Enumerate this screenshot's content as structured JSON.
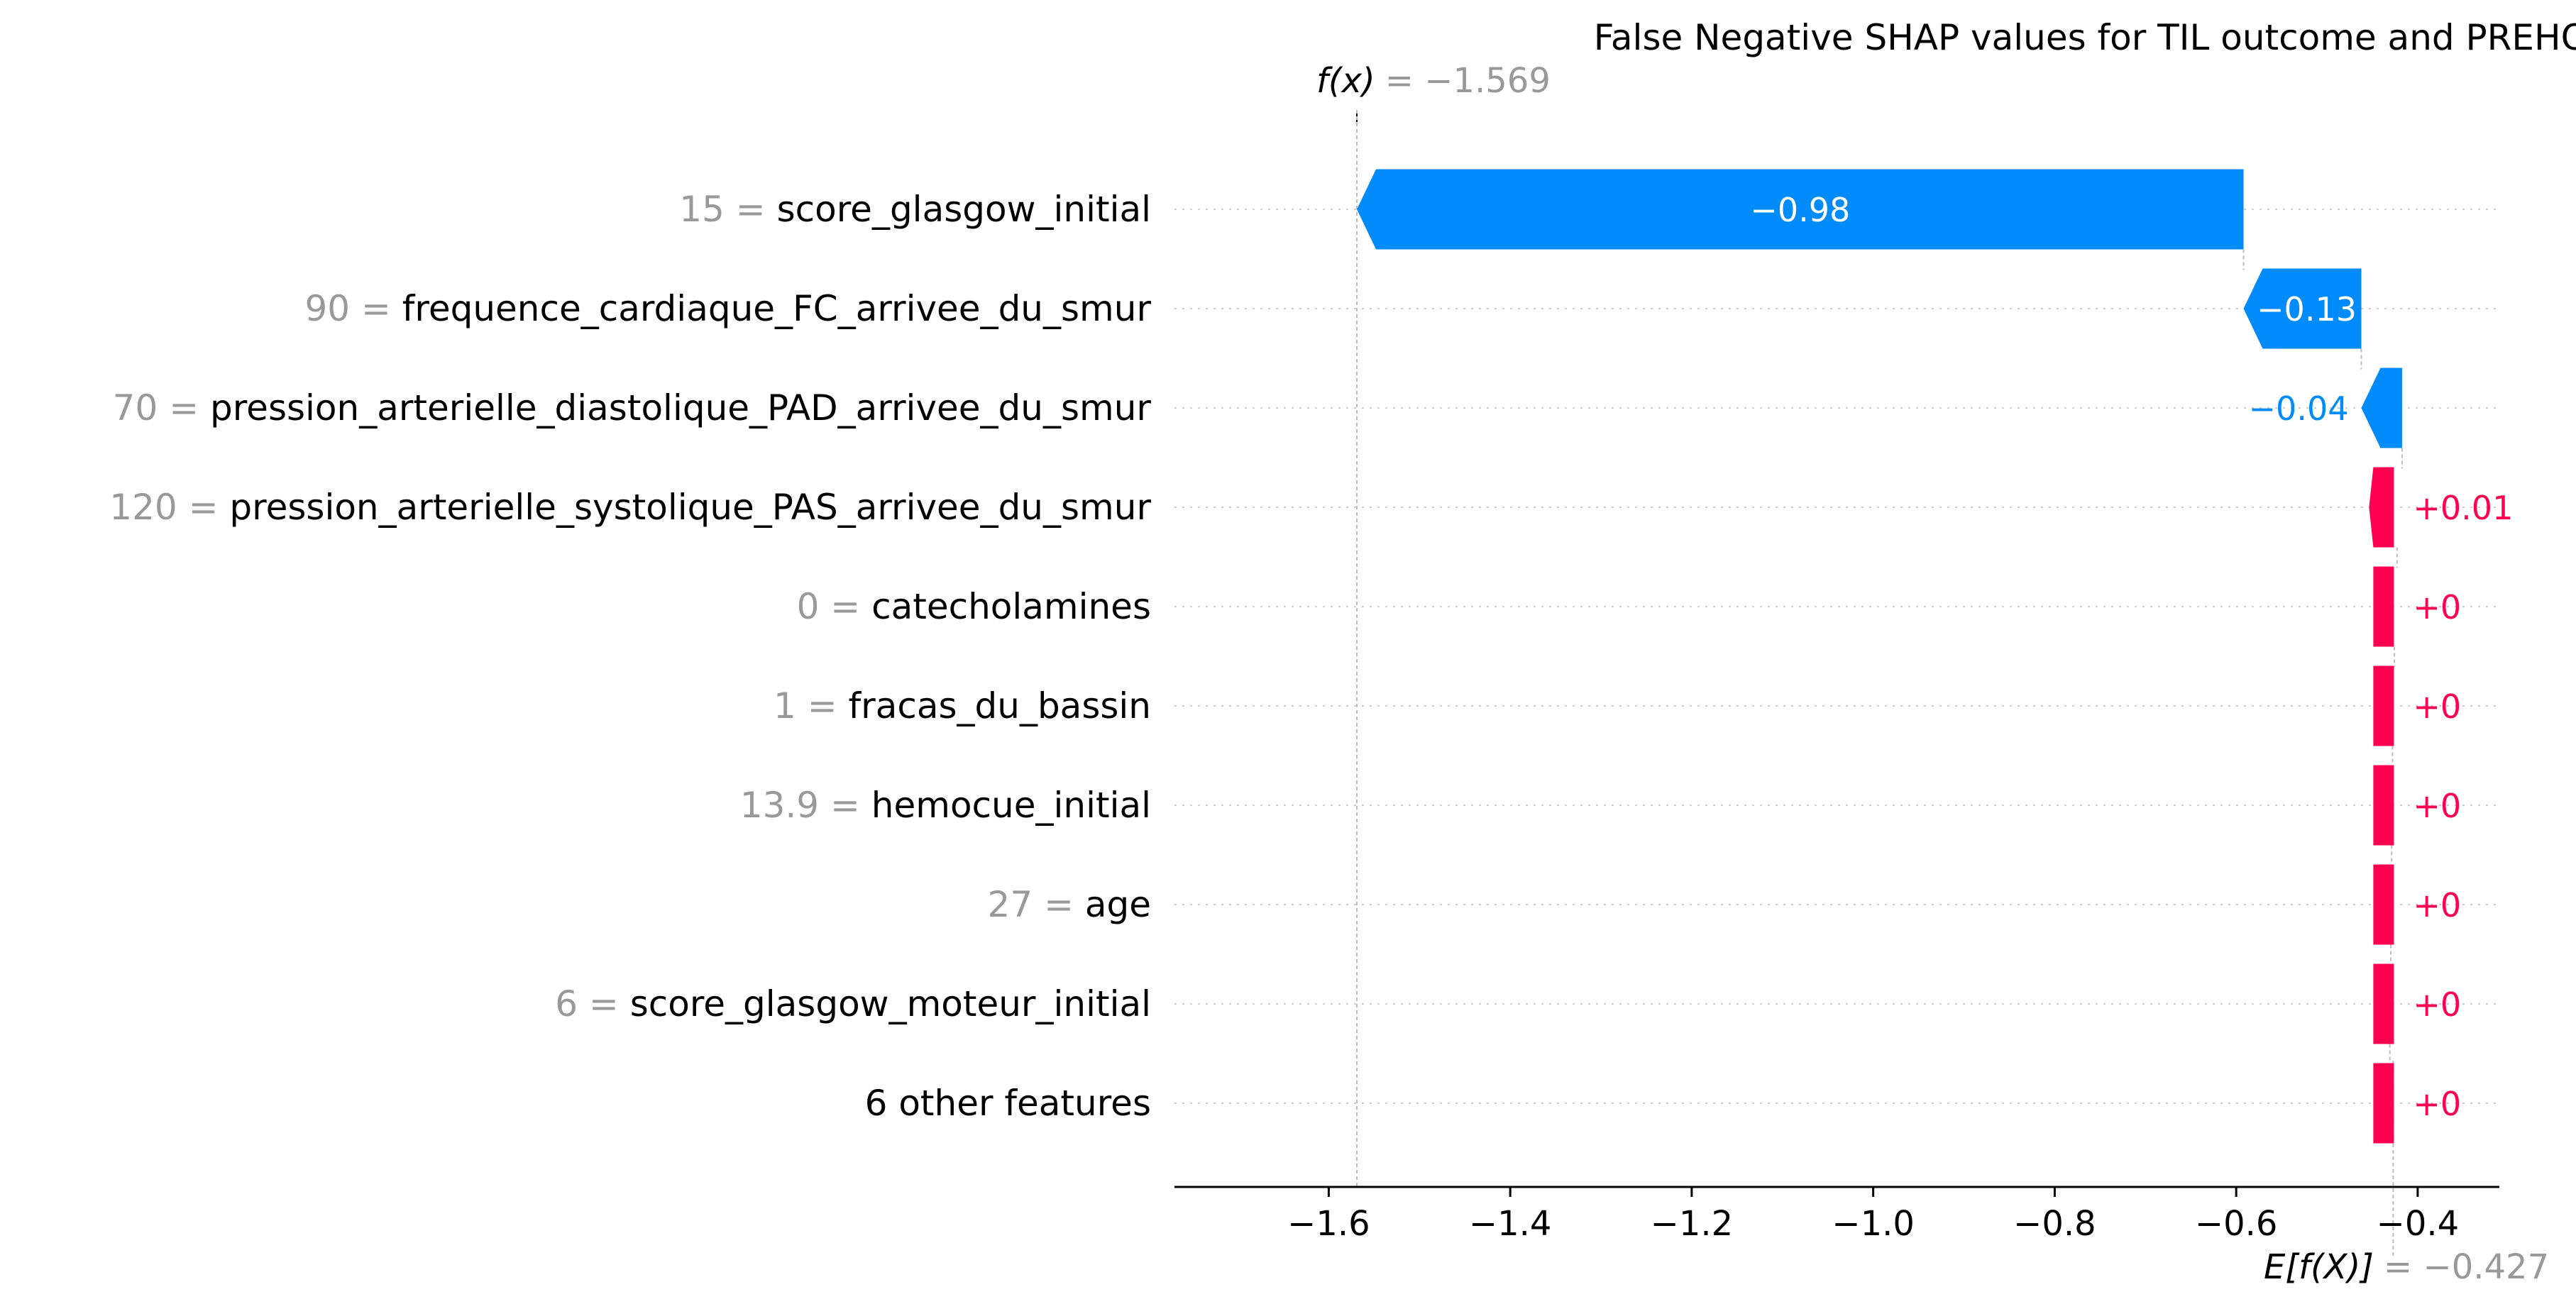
{
  "chart_data": {
    "type": "waterfall",
    "title": "False Negative SHAP values for TIL outcome and PREHOSP data.",
    "fx_label": "f(x)",
    "fx_value": "= −1.569",
    "ex_label": "E[f(X)]",
    "ex_value": "= −0.427",
    "base_value": -0.427,
    "output_value": -1.569,
    "xlim": [
      -1.77,
      -0.31
    ],
    "x_ticks": [
      -1.6,
      -1.4,
      -1.2,
      -1.0,
      -0.8,
      -0.6,
      -0.4
    ],
    "x_tick_labels": [
      "−1.6",
      "−1.4",
      "−1.2",
      "−1.0",
      "−0.8",
      "−0.6",
      "−0.4"
    ],
    "colors": {
      "negative": "#008bfb",
      "positive": "#ff0051",
      "muted": "#999999"
    },
    "features": [
      {
        "value": "15",
        "name": "score_glasgow_initial",
        "shap": -0.9771,
        "label": "−0.98",
        "label_inside": true
      },
      {
        "value": "90",
        "name": "frequence_cardiaque_FC_arrivee_du_smur",
        "shap": -0.1298,
        "label": "−0.13",
        "label_inside": true
      },
      {
        "value": "70",
        "name": "pression_arterielle_diastolique_PAD_arrivee_du_smur",
        "shap": -0.0449,
        "label": "−0.04",
        "label_inside": false
      },
      {
        "value": "120",
        "name": "pression_arterielle_systolique_PAS_arrivee_du_smur",
        "shap": 0.0055,
        "label": "+0.01",
        "label_inside": false
      },
      {
        "value": "0",
        "name": "catecholamines",
        "shap": 0.003,
        "label": "+0",
        "label_inside": false
      },
      {
        "value": "1",
        "name": "fracas_du_bassin",
        "shap": 0.002,
        "label": "+0",
        "label_inside": false
      },
      {
        "value": "13.9",
        "name": "hemocue_initial",
        "shap": 0.001,
        "label": "+0",
        "label_inside": false
      },
      {
        "value": "27",
        "name": "age",
        "shap": 0.001,
        "label": "+0",
        "label_inside": false
      },
      {
        "value": "6",
        "name": "score_glasgow_moteur_initial",
        "shap": 0.001,
        "label": "+0",
        "label_inside": false
      },
      {
        "value": "",
        "name": "6 other features",
        "shap": 0.001,
        "label": "+0",
        "label_inside": false
      }
    ]
  }
}
